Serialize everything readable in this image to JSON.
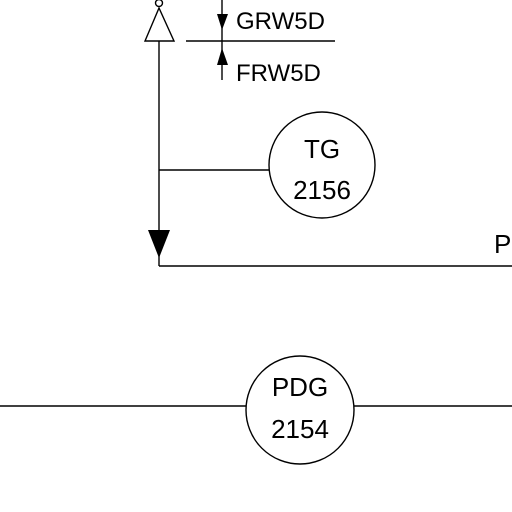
{
  "diagram": {
    "labels": {
      "upper_line_tag": "GRW5D",
      "lower_line_tag": "FRW5D",
      "cut_off_label": "P"
    },
    "instruments": {
      "tg": {
        "code": "TG",
        "number": "2156"
      },
      "pdg": {
        "code": "PDG",
        "number": "2154"
      }
    }
  }
}
